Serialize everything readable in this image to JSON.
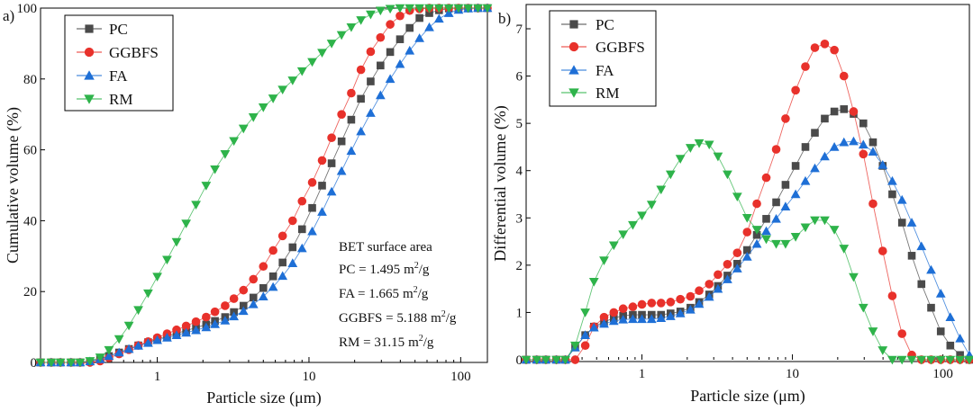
{
  "colors": {
    "PC": "#4a4a4a",
    "GGBFS": "#e8312b",
    "FA": "#1e6fd6",
    "RM": "#2eb34a"
  },
  "chart_data": [
    {
      "panel": "a)",
      "type": "scatter",
      "xlabel": "Particle size (μm)",
      "ylabel": "Cumulative volume (%)",
      "xscale": "log",
      "xlim": [
        0.17,
        150
      ],
      "ylim": [
        0,
        100
      ],
      "xticks": [
        1,
        10,
        100
      ],
      "xtick_labels": [
        "1",
        "10",
        "100"
      ],
      "yticks": [
        0,
        20,
        40,
        60,
        80,
        100
      ],
      "ytick_labels": [
        "0",
        "20",
        "40",
        "60",
        "80",
        "100"
      ],
      "legend": [
        "PC",
        "GGBFS",
        "FA",
        "RM"
      ],
      "legend_position": "top-left",
      "annotation": {
        "title": "BET surface area",
        "lines": [
          {
            "label": "PC",
            "value": "1.495",
            "unit": "m",
            "sup": "2",
            "tail": "/g"
          },
          {
            "label": "FA",
            "value": "1.665",
            "unit": "m",
            "sup": "2",
            "tail": "/g"
          },
          {
            "label": "GGBFS",
            "value": "5.188",
            "unit": "m",
            "sup": "2",
            "tail": "/g"
          },
          {
            "label": "RM",
            "value": "31.15",
            "unit": "m",
            "sup": "2",
            "tail": "/g"
          }
        ]
      },
      "series": [
        {
          "name": "PC",
          "marker": "square",
          "x": [
            0.17,
            0.2,
            0.23,
            0.27,
            0.31,
            0.36,
            0.42,
            0.48,
            0.56,
            0.65,
            0.75,
            0.87,
            1.0,
            1.16,
            1.34,
            1.55,
            1.8,
            2.1,
            2.4,
            2.8,
            3.2,
            3.7,
            4.3,
            5.0,
            5.8,
            6.7,
            7.8,
            9.0,
            10.5,
            12.2,
            14.1,
            16.4,
            19.0,
            22.0,
            25.5,
            29.6,
            34.3,
            39.8,
            46.1,
            53.5,
            62.1,
            72.0,
            83.5,
            96.8,
            112,
            130,
            150
          ],
          "y": [
            0,
            0,
            0,
            0,
            0,
            0.3,
            0.9,
            1.8,
            2.8,
            3.8,
            4.8,
            5.7,
            6.6,
            7.4,
            8.2,
            9.0,
            9.8,
            10.7,
            11.7,
            12.8,
            14.2,
            16.0,
            18.3,
            21.0,
            24.3,
            28.2,
            32.5,
            37.6,
            43.6,
            49.9,
            56.2,
            62.4,
            68.5,
            74.4,
            79.3,
            83.8,
            87.6,
            91.2,
            94.4,
            97.2,
            98.6,
            99.4,
            99.9,
            100,
            100,
            100,
            100
          ]
        },
        {
          "name": "GGBFS",
          "marker": "circle",
          "x": [
            0.17,
            0.2,
            0.23,
            0.27,
            0.31,
            0.36,
            0.42,
            0.48,
            0.56,
            0.65,
            0.75,
            0.87,
            1.0,
            1.16,
            1.34,
            1.55,
            1.8,
            2.1,
            2.4,
            2.8,
            3.2,
            3.7,
            4.3,
            5.0,
            5.8,
            6.7,
            7.8,
            9.0,
            10.5,
            12.2,
            14.1,
            16.4,
            19.0,
            22.0,
            25.5,
            29.6,
            34.3,
            39.8,
            46.1,
            53.5,
            62.1,
            72.0,
            83.5,
            96.8,
            112,
            130,
            150
          ],
          "y": [
            0,
            0,
            0,
            0,
            0,
            0,
            0.4,
            1.3,
            2.4,
            3.6,
            4.8,
            5.9,
            7.0,
            8.1,
            9.2,
            10.3,
            11.5,
            12.8,
            14.3,
            16.0,
            18.0,
            20.4,
            23.5,
            27.1,
            31.6,
            35.7,
            40.0,
            45.5,
            50.8,
            57.0,
            63.4,
            70.0,
            76.0,
            82.6,
            87.7,
            91.7,
            95.4,
            97.8,
            99.3,
            99.8,
            100,
            100,
            100,
            100,
            100,
            100,
            100
          ]
        },
        {
          "name": "FA",
          "marker": "triangle-up",
          "x": [
            0.17,
            0.2,
            0.23,
            0.27,
            0.31,
            0.36,
            0.42,
            0.48,
            0.56,
            0.65,
            0.75,
            0.87,
            1.0,
            1.16,
            1.34,
            1.55,
            1.8,
            2.1,
            2.4,
            2.8,
            3.2,
            3.7,
            4.3,
            5.0,
            5.8,
            6.7,
            7.8,
            9.0,
            10.5,
            12.2,
            14.1,
            16.4,
            19.0,
            22.0,
            25.5,
            29.6,
            34.3,
            39.8,
            46.1,
            53.5,
            62.1,
            72.0,
            83.5,
            96.8,
            112,
            130,
            150
          ],
          "y": [
            0,
            0,
            0,
            0,
            0,
            0.3,
            0.9,
            1.8,
            2.8,
            3.8,
            4.7,
            5.5,
            6.3,
            7.0,
            7.7,
            8.4,
            9.1,
            9.9,
            10.8,
            11.8,
            13.0,
            14.5,
            16.4,
            18.6,
            21.3,
            24.4,
            28.0,
            32.2,
            37.0,
            42.5,
            48.2,
            54.0,
            59.7,
            65.2,
            70.4,
            75.4,
            80.0,
            84.2,
            88.0,
            91.5,
            94.6,
            97.0,
            98.6,
            99.5,
            99.9,
            100,
            100
          ]
        },
        {
          "name": "RM",
          "marker": "triangle-down",
          "x": [
            0.17,
            0.2,
            0.23,
            0.27,
            0.31,
            0.36,
            0.42,
            0.48,
            0.56,
            0.65,
            0.75,
            0.87,
            1.0,
            1.16,
            1.34,
            1.55,
            1.8,
            2.1,
            2.4,
            2.8,
            3.2,
            3.7,
            4.3,
            5.0,
            5.8,
            6.7,
            7.8,
            9.0,
            10.5,
            12.2,
            14.1,
            16.4,
            19.0,
            22.0,
            25.5,
            29.6,
            34.3,
            39.8,
            46.1,
            53.5,
            62.1,
            72.0,
            83.5,
            96.8,
            112,
            130,
            150
          ],
          "y": [
            0,
            0,
            0,
            0,
            0,
            0.4,
            1.4,
            3.5,
            6.6,
            10.4,
            14.8,
            19.5,
            24.2,
            29.0,
            34.0,
            39.2,
            44.5,
            49.9,
            54.5,
            58.8,
            62.5,
            66.0,
            69.2,
            72.0,
            74.5,
            77.0,
            79.6,
            82.2,
            84.8,
            87.4,
            90.0,
            92.4,
            94.6,
            96.6,
            98.2,
            99.3,
            99.8,
            100,
            100,
            100,
            100,
            100,
            100,
            100,
            100,
            100,
            100
          ]
        }
      ]
    },
    {
      "panel": "b)",
      "type": "scatter",
      "xlabel": "Particle size (μm)",
      "ylabel": "Differential volume (%)",
      "xscale": "log",
      "xlim": [
        0.17,
        150
      ],
      "ylim": [
        0,
        7
      ],
      "xticks": [
        1,
        10,
        100
      ],
      "xtick_labels": [
        "1",
        "10",
        "100"
      ],
      "yticks": [
        0,
        1,
        2,
        3,
        4,
        5,
        6,
        7
      ],
      "ytick_labels": [
        "0",
        "1",
        "2",
        "3",
        "4",
        "5",
        "6",
        "7"
      ],
      "legend": [
        "PC",
        "GGBFS",
        "FA",
        "RM"
      ],
      "legend_position": "top-left",
      "series": [
        {
          "name": "PC",
          "marker": "square",
          "x": [
            0.17,
            0.2,
            0.23,
            0.27,
            0.31,
            0.36,
            0.42,
            0.48,
            0.56,
            0.65,
            0.75,
            0.87,
            1.0,
            1.16,
            1.34,
            1.55,
            1.8,
            2.1,
            2.4,
            2.8,
            3.2,
            3.7,
            4.3,
            5.0,
            5.8,
            6.7,
            7.8,
            9.0,
            10.5,
            12.2,
            14.1,
            16.4,
            19.0,
            22.0,
            25.5,
            29.6,
            34.3,
            39.8,
            46.1,
            53.5,
            62.1,
            72.0,
            83.5,
            96.8,
            112,
            130,
            150
          ],
          "y": [
            0,
            0,
            0,
            0,
            0,
            0.26,
            0.52,
            0.7,
            0.8,
            0.88,
            0.93,
            0.95,
            0.95,
            0.95,
            0.95,
            0.98,
            1.02,
            1.1,
            1.22,
            1.38,
            1.56,
            1.78,
            2.03,
            2.32,
            2.64,
            2.98,
            3.33,
            3.7,
            4.1,
            4.5,
            4.8,
            5.1,
            5.25,
            5.3,
            5.2,
            5.0,
            4.6,
            4.1,
            3.5,
            2.9,
            2.2,
            1.6,
            1.1,
            0.6,
            0.3,
            0.1,
            0
          ]
        },
        {
          "name": "GGBFS",
          "marker": "circle",
          "x": [
            0.17,
            0.2,
            0.23,
            0.27,
            0.31,
            0.36,
            0.42,
            0.48,
            0.56,
            0.65,
            0.75,
            0.87,
            1.0,
            1.16,
            1.34,
            1.55,
            1.8,
            2.1,
            2.4,
            2.8,
            3.2,
            3.7,
            4.3,
            5.0,
            5.8,
            6.7,
            7.8,
            9.0,
            10.5,
            12.2,
            14.1,
            16.4,
            19.0,
            22.0,
            25.5,
            29.6,
            34.3,
            39.8,
            46.1,
            53.5,
            62.1,
            72.0,
            83.5,
            96.8,
            112,
            130,
            150
          ],
          "y": [
            0,
            0,
            0,
            0,
            0,
            0,
            0.3,
            0.7,
            0.9,
            1.0,
            1.08,
            1.12,
            1.17,
            1.2,
            1.2,
            1.22,
            1.28,
            1.34,
            1.46,
            1.6,
            1.8,
            2.02,
            2.26,
            2.7,
            3.3,
            3.85,
            4.45,
            5.1,
            5.7,
            6.2,
            6.6,
            6.68,
            6.55,
            6.0,
            5.25,
            4.35,
            3.3,
            2.3,
            1.35,
            0.55,
            0.1,
            0,
            0,
            0,
            0,
            0,
            0
          ]
        },
        {
          "name": "FA",
          "marker": "triangle-up",
          "x": [
            0.17,
            0.2,
            0.23,
            0.27,
            0.31,
            0.36,
            0.42,
            0.48,
            0.56,
            0.65,
            0.75,
            0.87,
            1.0,
            1.16,
            1.34,
            1.55,
            1.8,
            2.1,
            2.4,
            2.8,
            3.2,
            3.7,
            4.3,
            5.0,
            5.8,
            6.7,
            7.8,
            9.0,
            10.5,
            12.2,
            14.1,
            16.4,
            19.0,
            22.0,
            25.5,
            29.6,
            34.3,
            39.8,
            46.1,
            53.5,
            62.1,
            72.0,
            83.5,
            96.8,
            112,
            130,
            150
          ],
          "y": [
            0,
            0,
            0,
            0,
            0,
            0.26,
            0.52,
            0.68,
            0.76,
            0.82,
            0.85,
            0.86,
            0.86,
            0.86,
            0.88,
            0.92,
            0.98,
            1.06,
            1.18,
            1.33,
            1.5,
            1.7,
            1.93,
            2.18,
            2.45,
            2.72,
            2.98,
            3.24,
            3.5,
            3.78,
            4.05,
            4.3,
            4.5,
            4.6,
            4.62,
            4.55,
            4.4,
            4.12,
            3.78,
            3.38,
            2.9,
            2.4,
            1.9,
            1.4,
            0.9,
            0.45,
            0.1
          ]
        },
        {
          "name": "RM",
          "marker": "triangle-down",
          "x": [
            0.17,
            0.2,
            0.23,
            0.27,
            0.31,
            0.36,
            0.42,
            0.48,
            0.56,
            0.65,
            0.75,
            0.87,
            1.0,
            1.16,
            1.34,
            1.55,
            1.8,
            2.1,
            2.4,
            2.8,
            3.2,
            3.7,
            4.3,
            5.0,
            5.8,
            6.7,
            7.8,
            9.0,
            10.5,
            12.2,
            14.1,
            16.4,
            19.0,
            22.0,
            25.5,
            29.6,
            34.3,
            39.8,
            46.1,
            53.5,
            62.1,
            72.0,
            83.5,
            96.8,
            112,
            130,
            150
          ],
          "y": [
            0,
            0,
            0,
            0,
            0,
            0.3,
            1.0,
            1.65,
            2.1,
            2.42,
            2.65,
            2.85,
            3.05,
            3.28,
            3.6,
            3.92,
            4.25,
            4.48,
            4.58,
            4.55,
            4.3,
            3.92,
            3.45,
            3.0,
            2.75,
            2.55,
            2.45,
            2.45,
            2.6,
            2.8,
            2.95,
            2.95,
            2.75,
            2.35,
            1.75,
            1.1,
            0.6,
            0.2,
            0,
            0,
            0,
            0,
            0,
            0,
            0,
            0,
            0
          ]
        }
      ]
    }
  ]
}
